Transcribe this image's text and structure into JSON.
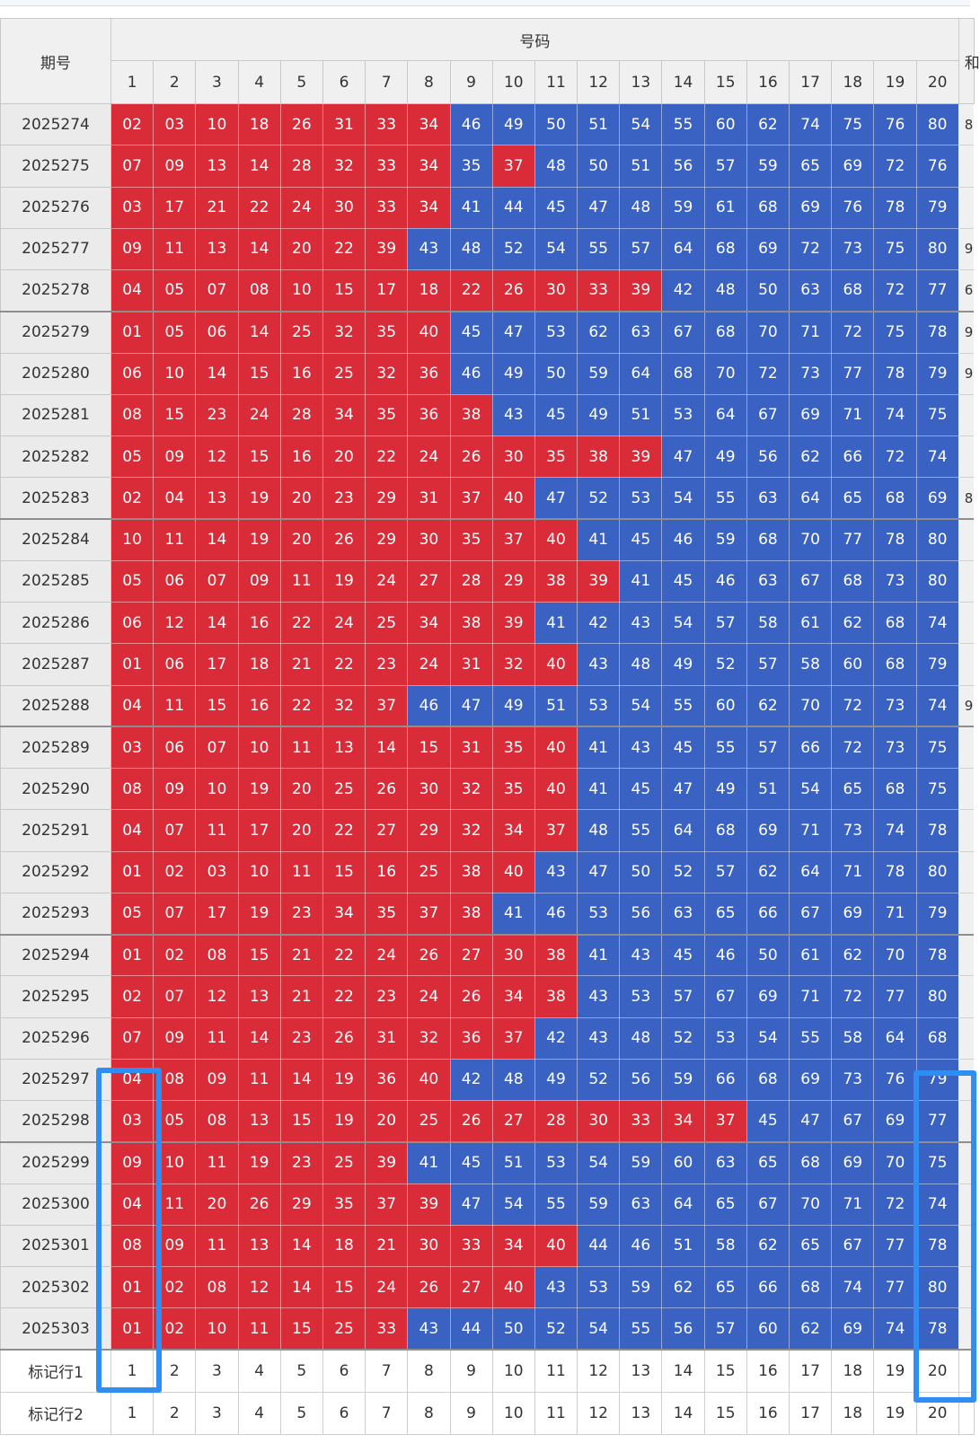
{
  "header": {
    "period_label": "期号",
    "numbers_label": "号码",
    "extra_col_label": "和",
    "columns": [
      "1",
      "2",
      "3",
      "4",
      "5",
      "6",
      "7",
      "8",
      "9",
      "10",
      "11",
      "12",
      "13",
      "14",
      "15",
      "16",
      "17",
      "18",
      "19",
      "20"
    ]
  },
  "colors": {
    "red": "#d92b38",
    "blue": "#3a62c2",
    "highlight": "#2f8ef3"
  },
  "rows": [
    {
      "period": "2025274",
      "red_count": 8,
      "extra": "8",
      "numbers": [
        "02",
        "03",
        "10",
        "18",
        "26",
        "31",
        "33",
        "34",
        "46",
        "49",
        "50",
        "51",
        "54",
        "55",
        "60",
        "62",
        "74",
        "75",
        "76",
        "80"
      ]
    },
    {
      "period": "2025275",
      "red_count": 8,
      "red_extra": [
        9
      ],
      "extra": "",
      "numbers": [
        "07",
        "09",
        "13",
        "14",
        "28",
        "32",
        "33",
        "34",
        "35",
        "37",
        "48",
        "50",
        "51",
        "56",
        "57",
        "59",
        "65",
        "69",
        "72",
        "76"
      ]
    },
    {
      "period": "2025276",
      "red_count": 8,
      "extra": "",
      "numbers": [
        "03",
        "17",
        "21",
        "22",
        "24",
        "30",
        "33",
        "34",
        "41",
        "44",
        "45",
        "47",
        "48",
        "59",
        "61",
        "68",
        "69",
        "76",
        "78",
        "79"
      ]
    },
    {
      "period": "2025277",
      "red_count": 7,
      "extra": "9",
      "numbers": [
        "09",
        "11",
        "13",
        "14",
        "20",
        "22",
        "39",
        "43",
        "48",
        "52",
        "54",
        "55",
        "57",
        "64",
        "68",
        "69",
        "72",
        "73",
        "75",
        "80"
      ]
    },
    {
      "period": "2025278",
      "red_count": 13,
      "extra": "6",
      "numbers": [
        "04",
        "05",
        "07",
        "08",
        "10",
        "15",
        "17",
        "18",
        "22",
        "26",
        "30",
        "33",
        "39",
        "42",
        "48",
        "50",
        "63",
        "68",
        "72",
        "77"
      ]
    },
    {
      "period": "2025279",
      "red_count": 8,
      "extra": "9",
      "numbers": [
        "01",
        "05",
        "06",
        "14",
        "25",
        "32",
        "35",
        "40",
        "45",
        "47",
        "53",
        "62",
        "63",
        "67",
        "68",
        "70",
        "71",
        "72",
        "75",
        "78"
      ]
    },
    {
      "period": "2025280",
      "red_count": 8,
      "extra": "9",
      "numbers": [
        "06",
        "10",
        "14",
        "15",
        "16",
        "25",
        "32",
        "36",
        "46",
        "49",
        "50",
        "59",
        "64",
        "68",
        "70",
        "72",
        "73",
        "77",
        "78",
        "79"
      ]
    },
    {
      "period": "2025281",
      "red_count": 9,
      "extra": "",
      "numbers": [
        "08",
        "15",
        "23",
        "24",
        "28",
        "34",
        "35",
        "36",
        "38",
        "43",
        "45",
        "49",
        "51",
        "53",
        "64",
        "67",
        "69",
        "71",
        "74",
        "75"
      ]
    },
    {
      "period": "2025282",
      "red_count": 13,
      "extra": "",
      "numbers": [
        "05",
        "09",
        "12",
        "15",
        "16",
        "20",
        "22",
        "24",
        "26",
        "30",
        "35",
        "38",
        "39",
        "47",
        "49",
        "56",
        "62",
        "66",
        "72",
        "74"
      ]
    },
    {
      "period": "2025283",
      "red_count": 10,
      "extra": "8",
      "numbers": [
        "02",
        "04",
        "13",
        "19",
        "20",
        "23",
        "29",
        "31",
        "37",
        "40",
        "47",
        "52",
        "53",
        "54",
        "55",
        "63",
        "64",
        "65",
        "68",
        "69"
      ]
    },
    {
      "period": "2025284",
      "red_count": 11,
      "extra": "",
      "numbers": [
        "10",
        "11",
        "14",
        "19",
        "20",
        "26",
        "29",
        "30",
        "35",
        "37",
        "40",
        "41",
        "45",
        "46",
        "59",
        "68",
        "70",
        "77",
        "78",
        "80"
      ]
    },
    {
      "period": "2025285",
      "red_count": 12,
      "extra": "",
      "numbers": [
        "05",
        "06",
        "07",
        "09",
        "11",
        "19",
        "24",
        "27",
        "28",
        "29",
        "38",
        "39",
        "41",
        "45",
        "46",
        "63",
        "67",
        "68",
        "73",
        "80"
      ]
    },
    {
      "period": "2025286",
      "red_count": 10,
      "extra": "",
      "numbers": [
        "06",
        "12",
        "14",
        "16",
        "22",
        "24",
        "25",
        "34",
        "38",
        "39",
        "41",
        "42",
        "43",
        "54",
        "57",
        "58",
        "61",
        "62",
        "68",
        "74"
      ]
    },
    {
      "period": "2025287",
      "red_count": 11,
      "extra": "",
      "numbers": [
        "01",
        "06",
        "17",
        "18",
        "21",
        "22",
        "23",
        "24",
        "31",
        "32",
        "40",
        "43",
        "48",
        "49",
        "52",
        "57",
        "58",
        "60",
        "68",
        "79"
      ]
    },
    {
      "period": "2025288",
      "red_count": 7,
      "extra": "9",
      "numbers": [
        "04",
        "11",
        "15",
        "16",
        "22",
        "32",
        "37",
        "46",
        "47",
        "49",
        "51",
        "53",
        "54",
        "55",
        "60",
        "62",
        "70",
        "72",
        "73",
        "74"
      ]
    },
    {
      "period": "2025289",
      "red_count": 11,
      "extra": "",
      "numbers": [
        "03",
        "06",
        "07",
        "10",
        "11",
        "13",
        "14",
        "15",
        "31",
        "35",
        "40",
        "41",
        "43",
        "45",
        "55",
        "57",
        "66",
        "72",
        "73",
        "75"
      ]
    },
    {
      "period": "2025290",
      "red_count": 11,
      "extra": "",
      "numbers": [
        "08",
        "09",
        "10",
        "19",
        "20",
        "25",
        "26",
        "30",
        "32",
        "35",
        "40",
        "41",
        "45",
        "47",
        "49",
        "51",
        "54",
        "65",
        "68",
        "75"
      ]
    },
    {
      "period": "2025291",
      "red_count": 11,
      "extra": "",
      "numbers": [
        "04",
        "07",
        "11",
        "17",
        "20",
        "22",
        "27",
        "29",
        "32",
        "34",
        "37",
        "48",
        "55",
        "64",
        "68",
        "69",
        "71",
        "73",
        "74",
        "78"
      ]
    },
    {
      "period": "2025292",
      "red_count": 10,
      "extra": "",
      "numbers": [
        "01",
        "02",
        "03",
        "10",
        "11",
        "15",
        "16",
        "25",
        "38",
        "40",
        "43",
        "47",
        "50",
        "52",
        "57",
        "62",
        "64",
        "71",
        "78",
        "80"
      ]
    },
    {
      "period": "2025293",
      "red_count": 9,
      "extra": "",
      "numbers": [
        "05",
        "07",
        "17",
        "19",
        "23",
        "34",
        "35",
        "37",
        "38",
        "41",
        "46",
        "53",
        "56",
        "63",
        "65",
        "66",
        "67",
        "69",
        "71",
        "79"
      ]
    },
    {
      "period": "2025294",
      "red_count": 11,
      "extra": "",
      "numbers": [
        "01",
        "02",
        "08",
        "15",
        "21",
        "22",
        "24",
        "26",
        "27",
        "30",
        "38",
        "41",
        "43",
        "45",
        "46",
        "50",
        "61",
        "62",
        "70",
        "78"
      ]
    },
    {
      "period": "2025295",
      "red_count": 11,
      "extra": "",
      "numbers": [
        "02",
        "07",
        "12",
        "13",
        "21",
        "22",
        "23",
        "24",
        "26",
        "34",
        "38",
        "43",
        "53",
        "57",
        "67",
        "69",
        "71",
        "72",
        "77",
        "80"
      ]
    },
    {
      "period": "2025296",
      "red_count": 10,
      "extra": "",
      "numbers": [
        "07",
        "09",
        "11",
        "14",
        "23",
        "26",
        "31",
        "32",
        "36",
        "37",
        "42",
        "43",
        "48",
        "52",
        "53",
        "54",
        "55",
        "58",
        "64",
        "68"
      ]
    },
    {
      "period": "2025297",
      "red_count": 8,
      "extra": "",
      "numbers": [
        "04",
        "08",
        "09",
        "11",
        "14",
        "19",
        "36",
        "40",
        "42",
        "48",
        "49",
        "52",
        "56",
        "59",
        "66",
        "68",
        "69",
        "73",
        "76",
        "79"
      ]
    },
    {
      "period": "2025298",
      "red_count": 15,
      "extra": "",
      "numbers": [
        "03",
        "05",
        "08",
        "13",
        "15",
        "19",
        "20",
        "25",
        "26",
        "27",
        "28",
        "30",
        "33",
        "34",
        "37",
        "45",
        "47",
        "67",
        "69",
        "77"
      ]
    },
    {
      "period": "2025299",
      "red_count": 7,
      "extra": "",
      "numbers": [
        "09",
        "10",
        "11",
        "19",
        "23",
        "25",
        "39",
        "41",
        "45",
        "51",
        "53",
        "54",
        "59",
        "60",
        "63",
        "65",
        "68",
        "69",
        "70",
        "75"
      ]
    },
    {
      "period": "2025300",
      "red_count": 8,
      "extra": "",
      "numbers": [
        "04",
        "11",
        "20",
        "26",
        "29",
        "35",
        "37",
        "39",
        "47",
        "54",
        "55",
        "59",
        "63",
        "64",
        "65",
        "67",
        "70",
        "71",
        "72",
        "74"
      ]
    },
    {
      "period": "2025301",
      "red_count": 11,
      "extra": "",
      "numbers": [
        "08",
        "09",
        "11",
        "13",
        "14",
        "18",
        "21",
        "30",
        "33",
        "34",
        "40",
        "44",
        "46",
        "51",
        "58",
        "62",
        "65",
        "67",
        "77",
        "78"
      ]
    },
    {
      "period": "2025302",
      "red_count": 10,
      "extra": "",
      "numbers": [
        "01",
        "02",
        "08",
        "12",
        "14",
        "15",
        "24",
        "26",
        "27",
        "40",
        "43",
        "53",
        "59",
        "62",
        "65",
        "66",
        "68",
        "74",
        "77",
        "80"
      ]
    },
    {
      "period": "2025303",
      "red_count": 7,
      "extra": "",
      "numbers": [
        "01",
        "02",
        "10",
        "11",
        "15",
        "25",
        "33",
        "43",
        "44",
        "50",
        "52",
        "54",
        "55",
        "56",
        "57",
        "60",
        "62",
        "69",
        "74",
        "78"
      ]
    }
  ],
  "mark_rows": [
    {
      "label": "标记行1",
      "values": [
        "1",
        "2",
        "3",
        "4",
        "5",
        "6",
        "7",
        "8",
        "9",
        "10",
        "11",
        "12",
        "13",
        "14",
        "15",
        "16",
        "17",
        "18",
        "19",
        "20"
      ]
    },
    {
      "label": "标记行2",
      "values": [
        "1",
        "2",
        "3",
        "4",
        "5",
        "6",
        "7",
        "8",
        "9",
        "10",
        "11",
        "12",
        "13",
        "14",
        "15",
        "16",
        "17",
        "18",
        "19",
        "20"
      ]
    }
  ]
}
